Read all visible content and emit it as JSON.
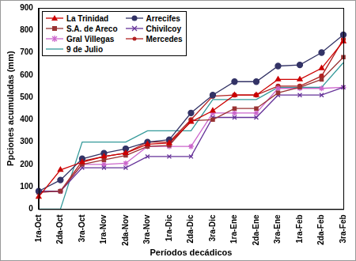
{
  "chart_data": {
    "type": "line",
    "x_label": "Períodos decádicos",
    "y_label": "Ppciones acumuladas (mm)",
    "categories": [
      "1ra-Oct",
      "2da-Oct",
      "3ra-Oct",
      "1ra-Nov",
      "2da-Nov",
      "3ra-Nov",
      "1ra-Dic",
      "2da-Dic",
      "3ra-Dic",
      "1ra-Ene",
      "2da-Ene",
      "3ra-Ene",
      "1ra-Feb",
      "2da-Feb",
      "3ra-Feb"
    ],
    "series": [
      {
        "name": "La Trinidad",
        "color": "#cc0000",
        "marker": "triangle",
        "values": [
          55,
          175,
          210,
          235,
          250,
          290,
          295,
          390,
          440,
          510,
          510,
          580,
          580,
          630,
          750
        ]
      },
      {
        "name": "Arrecifes",
        "color": "#333366",
        "marker": "circle",
        "values": [
          80,
          130,
          225,
          250,
          270,
          300,
          310,
          430,
          510,
          570,
          570,
          640,
          645,
          700,
          780
        ]
      },
      {
        "name": "S.A. de Areco",
        "color": "#993333",
        "marker": "square",
        "values": [
          75,
          80,
          200,
          220,
          240,
          280,
          285,
          395,
          400,
          450,
          450,
          520,
          545,
          580,
          680
        ]
      },
      {
        "name": "Chivilcoy",
        "color": "#663399",
        "marker": "x",
        "values": [
          80,
          80,
          185,
          185,
          185,
          235,
          235,
          235,
          410,
          410,
          410,
          510,
          510,
          510,
          545
        ]
      },
      {
        "name": "Gral Villegas",
        "color": "#cc66cc",
        "marker": "star",
        "values": [
          75,
          80,
          200,
          200,
          205,
          280,
          280,
          280,
          430,
          430,
          430,
          540,
          540,
          540,
          545
        ]
      },
      {
        "name": "Mercedes",
        "color": "#b22222",
        "marker": "dot",
        "values": [
          80,
          80,
          215,
          235,
          250,
          300,
          300,
          400,
          505,
          510,
          510,
          550,
          550,
          595,
          760
        ]
      },
      {
        "name": "9 de Julio",
        "color": "#339999",
        "marker": "none",
        "values": [
          0,
          0,
          300,
          300,
          300,
          350,
          350,
          350,
          490,
          490,
          490,
          545,
          545,
          545,
          655
        ]
      }
    ],
    "ylim": [
      0,
      900
    ],
    "yticks": [
      0,
      100,
      200,
      300,
      400,
      500,
      600,
      700,
      800,
      900
    ],
    "grid": false,
    "legend": "upper left"
  }
}
